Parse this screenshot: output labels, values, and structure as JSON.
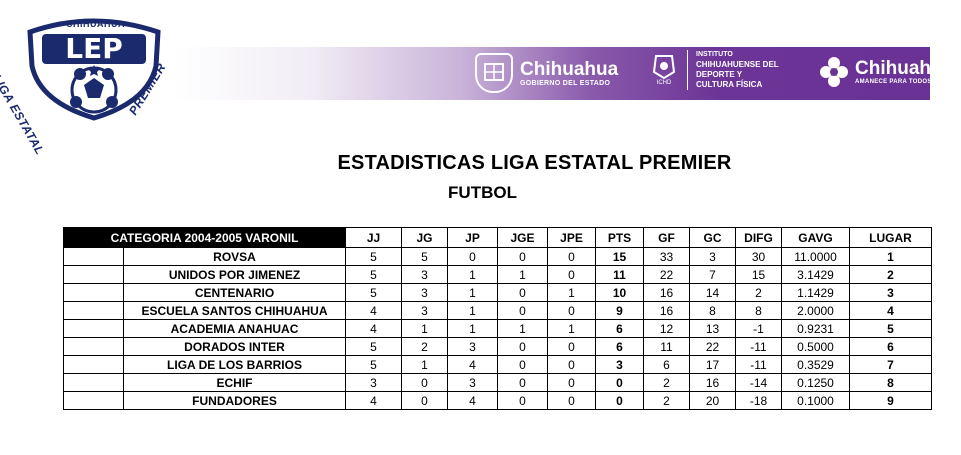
{
  "logo": {
    "top_text": "CHIHUAHUA",
    "initials": "LEP",
    "left_arc": "LIGA ESTATAL",
    "right_arc": "PREMIER"
  },
  "banner": {
    "gov1_title": "Chihuahua",
    "gov1_sub": "GOBIERNO DEL ESTADO",
    "ichd_abbr": "ICHD",
    "ichd_line1": "INSTITUTO",
    "ichd_line2": "CHIHUAHUENSE DEL",
    "ichd_line3": "DEPORTE Y",
    "ichd_line4": "CULTURA FÍSICA",
    "gov2_title": "Chihuahua",
    "gov2_sub": "AMANECE PARA TODOS"
  },
  "heading": "ESTADISTICAS LIGA ESTATAL PREMIER",
  "subheading": "FUTBOL",
  "table": {
    "category": "CATEGORIA 2004-2005 VARONIL",
    "columns": [
      "JJ",
      "JG",
      "JP",
      "JGE",
      "JPE",
      "PTS",
      "GF",
      "GC",
      "DIFG",
      "GAVG",
      "LUGAR"
    ],
    "rows": [
      [
        "ROVSA",
        "5",
        "5",
        "0",
        "0",
        "0",
        "15",
        "33",
        "3",
        "30",
        "11.0000",
        "1"
      ],
      [
        "UNIDOS POR JIMENEZ",
        "5",
        "3",
        "1",
        "1",
        "0",
        "11",
        "22",
        "7",
        "15",
        "3.1429",
        "2"
      ],
      [
        "CENTENARIO",
        "5",
        "3",
        "1",
        "0",
        "1",
        "10",
        "16",
        "14",
        "2",
        "1.1429",
        "3"
      ],
      [
        "ESCUELA SANTOS CHIHUAHUA",
        "4",
        "3",
        "1",
        "0",
        "0",
        "9",
        "16",
        "8",
        "8",
        "2.0000",
        "4"
      ],
      [
        "ACADEMIA ANAHUAC",
        "4",
        "1",
        "1",
        "1",
        "1",
        "6",
        "12",
        "13",
        "-1",
        "0.9231",
        "5"
      ],
      [
        "DORADOS INTER",
        "5",
        "2",
        "3",
        "0",
        "0",
        "6",
        "11",
        "22",
        "-11",
        "0.5000",
        "6"
      ],
      [
        "LIGA DE LOS BARRIOS",
        "5",
        "1",
        "4",
        "0",
        "0",
        "3",
        "6",
        "17",
        "-11",
        "0.3529",
        "7"
      ],
      [
        "ECHIF",
        "3",
        "0",
        "3",
        "0",
        "0",
        "0",
        "2",
        "16",
        "-14",
        "0.1250",
        "8"
      ],
      [
        "FUNDADORES",
        "4",
        "0",
        "4",
        "0",
        "0",
        "0",
        "2",
        "20",
        "-18",
        "0.1000",
        "9"
      ]
    ]
  },
  "colors": {
    "purple": "#6a3294",
    "navy": "#1a2a6c"
  }
}
